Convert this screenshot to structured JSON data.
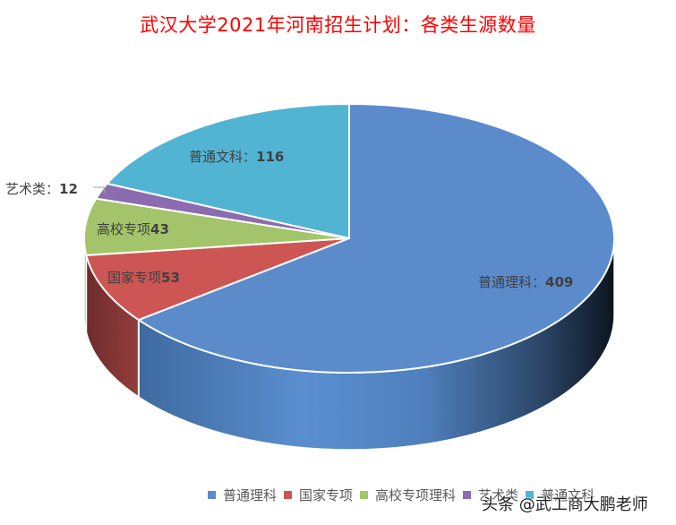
{
  "title": "武汉大学2021年河南招生计划：各类生源数量",
  "chart_data": {
    "type": "pie",
    "style": "3d",
    "title": "武汉大学2021年河南招生计划：各类生源数量",
    "categories": [
      "普通理科",
      "国家专项",
      "高校专项理科",
      "艺术类",
      "普通文科"
    ],
    "values": [
      409,
      53,
      43,
      12,
      116
    ],
    "colors": [
      "#5b8bcb",
      "#cd5654",
      "#a3c46a",
      "#8c6cb0",
      "#52b4d3"
    ],
    "data_labels": [
      "普通理科：409",
      "国家专项53",
      "高校专项43",
      "艺术类：12",
      "普通文科：116"
    ],
    "start_angle_deg": 0,
    "direction": "clockwise",
    "legend_position": "bottom"
  },
  "labels": {
    "l0_text": "普通理科：",
    "l0_num": "409",
    "l1_text": "国家专项",
    "l1_num": "53",
    "l2_text": "高校专项",
    "l2_num": "43",
    "l3_text": "艺术类：",
    "l3_num": "12",
    "l4_text": "普通文科：",
    "l4_num": "116"
  },
  "legend": {
    "items": [
      {
        "label": "普通理科",
        "color": "#5b8bcb"
      },
      {
        "label": "国家专项",
        "color": "#cd5654"
      },
      {
        "label": "高校专项理科",
        "color": "#a3c46a"
      },
      {
        "label": "艺术类",
        "color": "#8c6cb0"
      },
      {
        "label": "普通文科",
        "color": "#52b4d3"
      }
    ]
  },
  "watermark": "头条 @武工商大鹏老师"
}
